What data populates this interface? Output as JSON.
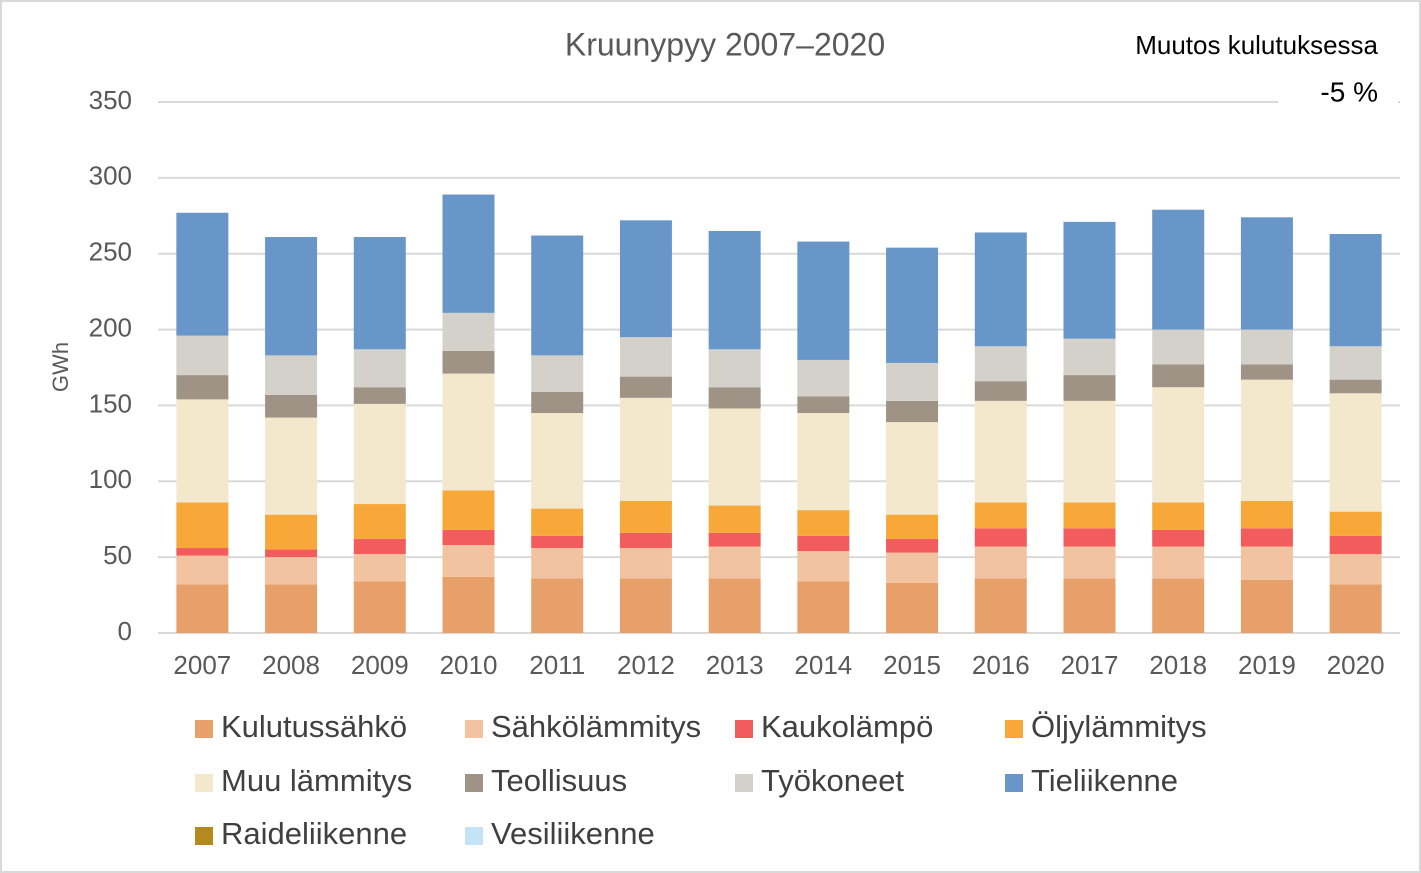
{
  "chart_data": {
    "type": "stacked_bar",
    "title": "Kruunypyy  2007–2020",
    "y_label": "GWh",
    "annotations": [
      "Muutos kulutuksessa",
      "-5 %"
    ],
    "categories": [
      "2007",
      "2008",
      "2009",
      "2010",
      "2011",
      "2012",
      "2013",
      "2014",
      "2015",
      "2016",
      "2017",
      "2018",
      "2019",
      "2020"
    ],
    "series": [
      {
        "name": "Kulutussähkö",
        "color": "#e8a06a",
        "values": [
          32,
          32,
          34,
          37,
          36,
          36,
          36,
          34,
          33,
          36,
          36,
          36,
          35,
          32
        ]
      },
      {
        "name": "Sähkölämmitys",
        "color": "#f1c3a0",
        "values": [
          19,
          18,
          18,
          21,
          20,
          20,
          21,
          20,
          20,
          21,
          21,
          21,
          22,
          20
        ]
      },
      {
        "name": "Kaukolämpö",
        "color": "#f25c5c",
        "values": [
          5,
          5,
          10,
          10,
          8,
          10,
          9,
          10,
          9,
          12,
          12,
          11,
          12,
          12
        ]
      },
      {
        "name": "Öljylämmitys",
        "color": "#f7a839",
        "values": [
          30,
          23,
          23,
          26,
          18,
          21,
          18,
          17,
          16,
          17,
          17,
          18,
          18,
          16
        ]
      },
      {
        "name": "Muu lämmitys",
        "color": "#f3e7cc",
        "values": [
          68,
          64,
          66,
          77,
          63,
          68,
          64,
          64,
          61,
          67,
          67,
          76,
          80,
          78
        ]
      },
      {
        "name": "Teollisuus",
        "color": "#9e9385",
        "values": [
          16,
          15,
          11,
          15,
          14,
          14,
          14,
          11,
          14,
          13,
          17,
          15,
          10,
          9
        ]
      },
      {
        "name": "Työkoneet",
        "color": "#d4d1cb",
        "values": [
          26,
          26,
          25,
          25,
          24,
          26,
          25,
          24,
          25,
          23,
          24,
          23,
          23,
          22
        ]
      },
      {
        "name": "Tieliikenne",
        "color": "#6896c8",
        "values": [
          81,
          78,
          74,
          78,
          79,
          77,
          78,
          78,
          76,
          75,
          77,
          79,
          74,
          74
        ]
      },
      {
        "name": "Raideliikenne",
        "color": "#b48a1e",
        "values": [
          0,
          0,
          0,
          0,
          0,
          0,
          0,
          0,
          0,
          0,
          0,
          0,
          0,
          0
        ]
      },
      {
        "name": "Vesiliikenne",
        "color": "#c3e3f7",
        "values": [
          0,
          0,
          0,
          0,
          0,
          0,
          0,
          0,
          0,
          0,
          0,
          0,
          0,
          0
        ]
      }
    ],
    "ylim": [
      0,
      350
    ],
    "yticks": [
      0,
      50,
      100,
      150,
      200,
      250,
      300,
      350
    ],
    "grid": true,
    "legend": "bottom"
  }
}
